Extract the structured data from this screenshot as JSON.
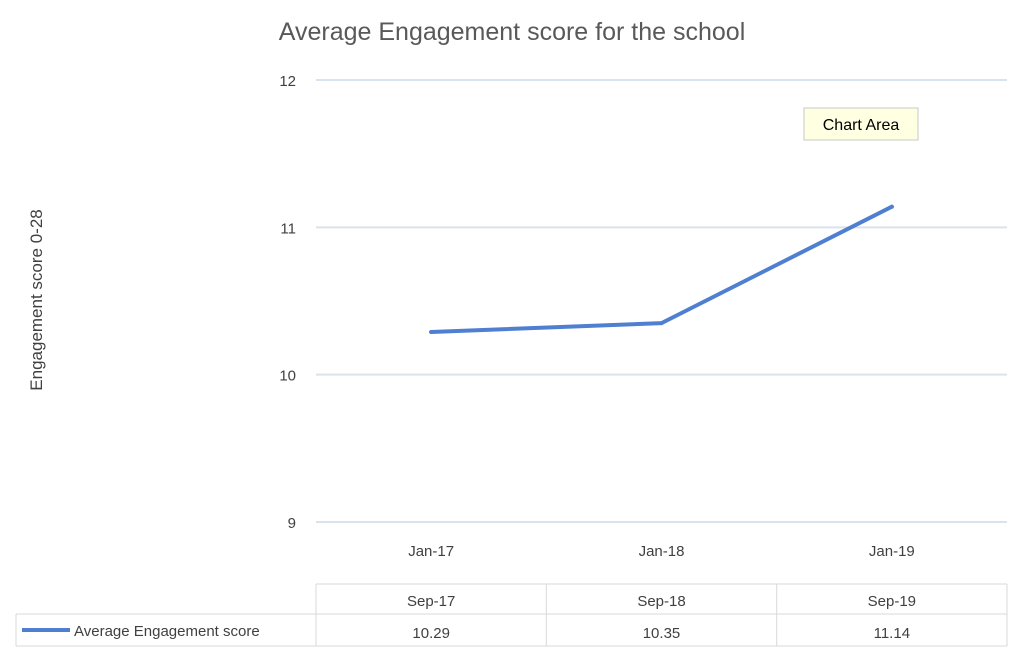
{
  "chart_data": {
    "type": "line",
    "title": "Average Engagement score for the school",
    "ylabel": "Engagement score 0-28",
    "xlabel": "",
    "categories": [
      "Jan-17",
      "Jan-18",
      "Jan-19"
    ],
    "table_header": [
      "Sep-17",
      "Sep-18",
      "Sep-19"
    ],
    "ylim": [
      9,
      12
    ],
    "yticks": [
      9,
      10,
      11,
      12
    ],
    "grid": true,
    "series": [
      {
        "name": "Average Engagement score",
        "values": [
          10.29,
          10.35,
          11.14
        ],
        "value_labels": [
          "10.29",
          "10.35",
          "11.14"
        ]
      }
    ],
    "colors": {
      "series": "#4f7fd0",
      "grid": "#d9e3ee",
      "table_border": "#d9d9d9",
      "tooltip_bg": "#ffffe1"
    }
  },
  "tooltip": {
    "label": "Chart Area"
  }
}
